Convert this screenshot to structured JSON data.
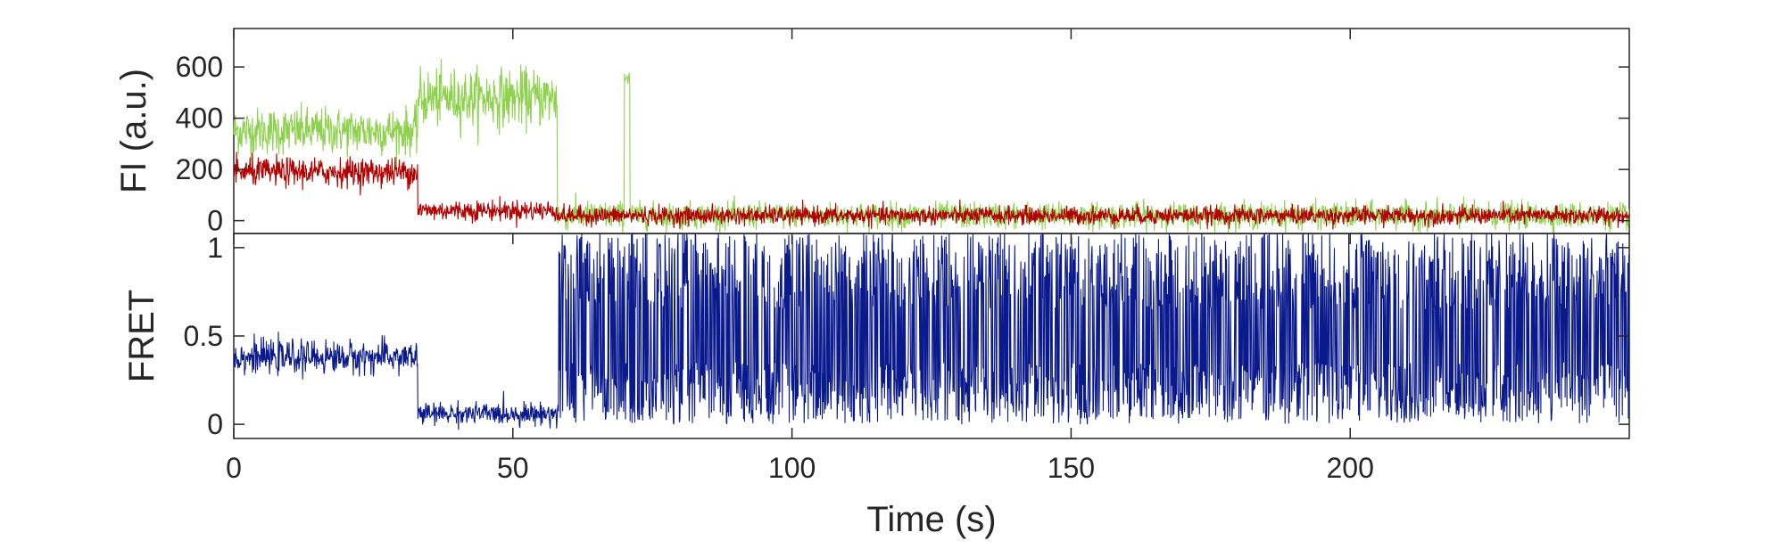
{
  "chart_data": [
    {
      "type": "line",
      "ylabel": "FI (a.u.)",
      "xlim": [
        0,
        250
      ],
      "ylim": [
        -50,
        750
      ],
      "yticks": [
        0,
        200,
        400,
        600
      ],
      "grid": false,
      "colors": {
        "donor": "#8fd14f",
        "acceptor": "#b00000"
      },
      "series": [
        {
          "color": "#8fd14f",
          "segments": [
            {
              "x": [
                0,
                33
              ],
              "mean": 350,
              "noise": 90
            },
            {
              "x": [
                33,
                58
              ],
              "mean": 480,
              "noise": 110
            },
            {
              "x": [
                58,
                70
              ],
              "mean": 20,
              "noise": 55
            },
            {
              "x": [
                70,
                71
              ],
              "mean": 560,
              "noise": 30
            },
            {
              "x": [
                71,
                250
              ],
              "mean": 20,
              "noise": 50
            }
          ]
        },
        {
          "color": "#b00000",
          "segments": [
            {
              "x": [
                0,
                33
              ],
              "mean": 190,
              "noise": 55
            },
            {
              "x": [
                33,
                58
              ],
              "mean": 40,
              "noise": 40
            },
            {
              "x": [
                58,
                250
              ],
              "mean": 20,
              "noise": 35
            }
          ]
        }
      ]
    },
    {
      "type": "line",
      "xlabel": "Time (s)",
      "ylabel": "FRET",
      "xlim": [
        0,
        250
      ],
      "ylim": [
        -0.08,
        1.08
      ],
      "xticks": [
        0,
        50,
        100,
        150,
        200
      ],
      "yticks": [
        0,
        0.5,
        1
      ],
      "yticklabels": [
        "0",
        "0.5",
        "1"
      ],
      "grid": false,
      "series": [
        {
          "color": "#0a1a8c",
          "segments": [
            {
              "x": [
                0,
                33
              ],
              "mean": 0.38,
              "noise": 0.09
            },
            {
              "x": [
                33,
                58
              ],
              "mean": 0.06,
              "noise": 0.06
            },
            {
              "x": [
                58,
                250
              ],
              "mean": 0.5,
              "noise": 0.55
            }
          ]
        }
      ]
    }
  ]
}
